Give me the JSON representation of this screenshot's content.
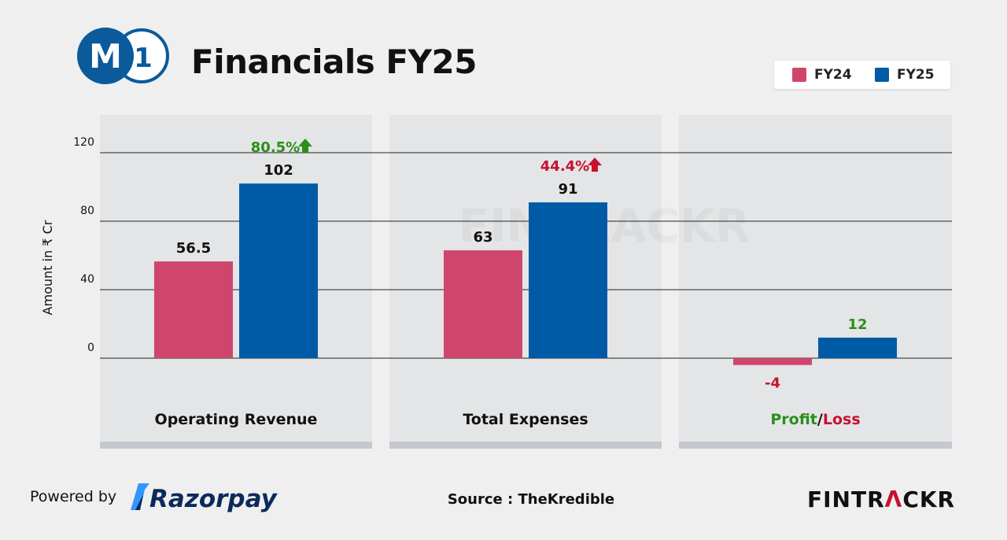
{
  "header": {
    "title": "Financials FY25",
    "logo_text": {
      "letter": "M",
      "number": "1"
    }
  },
  "legend": [
    {
      "label": "FY24",
      "color": "#cf466c"
    },
    {
      "label": "FY25",
      "color": "#005ba6"
    }
  ],
  "colors": {
    "fy24": "#cf466c",
    "fy25": "#005ba6",
    "positive": "#2b8f1a",
    "negative": "#c8102e",
    "panel": "#e4e5e7",
    "panel_base": "#c5c8ce",
    "brand_blue": "#0a5a9c"
  },
  "chart_data": {
    "type": "bar",
    "ylabel": "Amount in ₹ Cr",
    "ylim": [
      -26,
      140
    ],
    "yticks": [
      0,
      40,
      80,
      120
    ],
    "grid": true,
    "legend_position": "top-right",
    "categories": [
      "Operating Revenue",
      "Total Expenses",
      "Profit/Loss"
    ],
    "series": [
      {
        "name": "FY24",
        "values": [
          56.5,
          63,
          -4
        ]
      },
      {
        "name": "FY25",
        "values": [
          102,
          91,
          12
        ]
      }
    ],
    "data_labels": {
      "FY24": [
        "56.5",
        "63",
        "-4"
      ],
      "FY25": [
        "102",
        "91",
        "12"
      ]
    },
    "annotations": [
      {
        "category": "Operating Revenue",
        "text": "80.5%",
        "direction": "up",
        "color": "positive"
      },
      {
        "category": "Total Expenses",
        "text": "44.4%",
        "direction": "up",
        "color": "negative"
      }
    ],
    "category_label_parts": [
      [
        {
          "text": "Operating Revenue",
          "color": "#111111"
        }
      ],
      [
        {
          "text": "Total Expenses",
          "color": "#111111"
        }
      ],
      [
        {
          "text": "Profit",
          "color": "#2b8f1a"
        },
        {
          "text": "/",
          "color": "#111111"
        },
        {
          "text": "Loss",
          "color": "#c8102e"
        }
      ]
    ]
  },
  "footer": {
    "powered_by": "Powered by",
    "razorpay": "Razorpay",
    "source": "Source : TheKredible",
    "brand_part1": "FINTR",
    "brand_accent": "Λ",
    "brand_part2": "CKR",
    "watermark": "FINTRACKR"
  }
}
